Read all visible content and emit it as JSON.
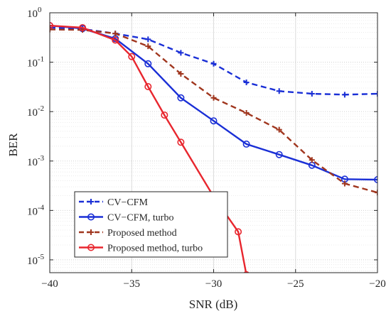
{
  "chart_data": {
    "type": "line",
    "title": "",
    "xlabel": "SNR (dB)",
    "ylabel": "BER",
    "xlim": [
      -40,
      -20
    ],
    "ylim": [
      5.5e-06,
      1
    ],
    "yscale": "log",
    "grid": true,
    "legend_position": "bottom-left",
    "x_ticks": [
      {
        "value": -40,
        "label": "−40"
      },
      {
        "value": -35,
        "label": "−35"
      },
      {
        "value": -30,
        "label": "−30"
      },
      {
        "value": -25,
        "label": "−25"
      },
      {
        "value": -20,
        "label": "−20"
      }
    ],
    "y_ticks": [
      {
        "value": 1,
        "base": "10",
        "exp": "0"
      },
      {
        "value": 0.1,
        "base": "10",
        "exp": "-1"
      },
      {
        "value": 0.01,
        "base": "10",
        "exp": "-2"
      },
      {
        "value": 0.001,
        "base": "10",
        "exp": "-3"
      },
      {
        "value": 0.0001,
        "base": "10",
        "exp": "-4"
      },
      {
        "value": 1e-05,
        "base": "10",
        "exp": "-5"
      }
    ],
    "series": [
      {
        "name": "CV−CFM",
        "color": "#1a2fd6",
        "line": "dashed",
        "marker": "plus",
        "x": [
          -40,
          -38,
          -36,
          -34,
          -32,
          -30,
          -28,
          -26,
          -24,
          -22,
          -20
        ],
        "y": [
          0.5,
          0.47,
          0.38,
          0.29,
          0.155,
          0.093,
          0.039,
          0.026,
          0.023,
          0.022,
          0.023
        ]
      },
      {
        "name": "CV−CFM, turbo",
        "color": "#1a2fd6",
        "line": "solid",
        "marker": "circle",
        "x": [
          -40,
          -38,
          -36,
          -34,
          -32,
          -30,
          -28,
          -26,
          -24,
          -22,
          -20
        ],
        "y": [
          0.55,
          0.48,
          0.3,
          0.093,
          0.019,
          0.0065,
          0.0022,
          0.00135,
          0.00082,
          0.00043,
          0.00042
        ]
      },
      {
        "name": "Proposed method",
        "color": "#a0361e",
        "line": "dashed",
        "marker": "plus",
        "x": [
          -40,
          -38,
          -36,
          -34,
          -32,
          -30,
          -28,
          -26,
          -24,
          -22,
          -20
        ],
        "y": [
          0.46,
          0.45,
          0.38,
          0.21,
          0.058,
          0.019,
          0.0094,
          0.0043,
          0.00105,
          0.00035,
          0.00023
        ]
      },
      {
        "name": "Proposed method, turbo",
        "color": "#e8262e",
        "line": "solid",
        "marker": "circle",
        "x": [
          -40,
          -38,
          -36,
          -35,
          -34,
          -33,
          -32,
          -30,
          -28.5,
          -28
        ],
        "y": [
          0.55,
          0.5,
          0.28,
          0.13,
          0.032,
          0.0085,
          0.0024,
          0.00019,
          3.7e-05,
          5e-06
        ]
      }
    ]
  }
}
